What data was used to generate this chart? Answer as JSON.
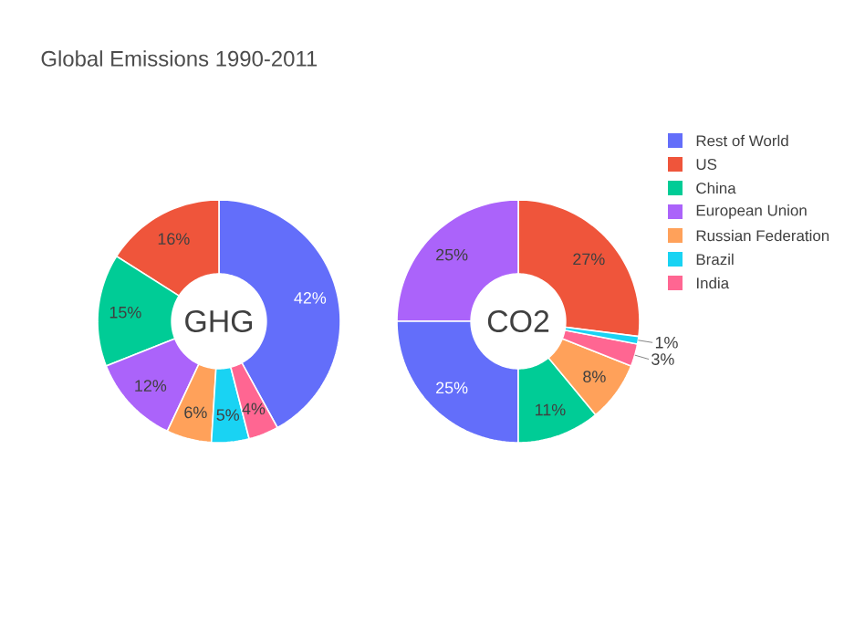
{
  "chart_data": [
    {
      "type": "donut",
      "title": "Global Emissions 1990-2011",
      "annotations": [
        "GHG"
      ],
      "legend": "right",
      "categories": [
        "Rest of World",
        "US",
        "China",
        "European Union",
        "Russian Federation",
        "Brazil",
        "India"
      ],
      "values": [
        42,
        16,
        15,
        12,
        6,
        5,
        4
      ],
      "colors": [
        "#636efa",
        "#ef553b",
        "#00cc96",
        "#ab63fa",
        "#ffa15a",
        "#19d3f3",
        "#ff6692"
      ],
      "value_labels": [
        "42%",
        "16%",
        "15%",
        "12%",
        "6%",
        "5%",
        "4%"
      ]
    },
    {
      "type": "donut",
      "annotations": [
        "CO2"
      ],
      "categories": [
        null,
        null,
        null,
        null,
        null,
        null,
        null
      ],
      "values": [
        27,
        25,
        25,
        11,
        8,
        3,
        1
      ],
      "colors": [
        "#ef553b",
        "#ab63fa",
        "#636efa",
        "#00cc96",
        "#ffa15a",
        "#ff6692",
        "#19d3f3"
      ],
      "value_labels": [
        "27%",
        "25%",
        "25%",
        "11%",
        "8%",
        "3%",
        "1%"
      ]
    }
  ]
}
